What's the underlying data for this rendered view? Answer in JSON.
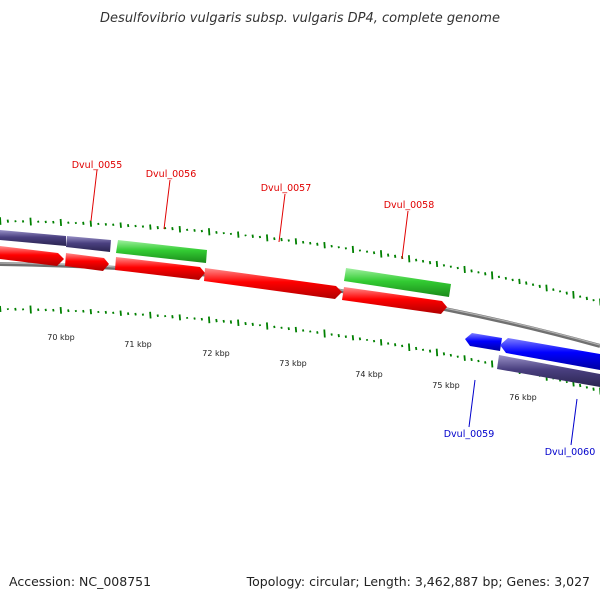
{
  "title": "Desulfovibrio vulgaris subsp. vulgaris DP4, complete genome",
  "footer": {
    "accession": "Accession: NC_008751",
    "summary": "Topology: circular; Length: 3,462,887 bp; Genes: 3,027"
  },
  "colors": {
    "forward_gene": "#ff0000",
    "reverse_gene": "#0000ff",
    "rna_gene": "#33cc33",
    "other_feature": "#4a4080",
    "backbone": "#808080",
    "skew_ticks": "#008000",
    "forward_label": "#e00000",
    "reverse_label": "#0000cc"
  },
  "kbp_labels": [
    "70 kbp",
    "71 kbp",
    "72 kbp",
    "73 kbp",
    "74 kbp",
    "75 kbp",
    "76 kbp"
  ],
  "gene_labels": [
    {
      "name": "Dvul_0055",
      "strand": "forward"
    },
    {
      "name": "Dvul_0056",
      "strand": "forward"
    },
    {
      "name": "Dvul_0057",
      "strand": "forward"
    },
    {
      "name": "Dvul_0058",
      "strand": "forward"
    },
    {
      "name": "Dvul_0059",
      "strand": "reverse"
    },
    {
      "name": "Dvul_0060",
      "strand": "reverse"
    }
  ]
}
